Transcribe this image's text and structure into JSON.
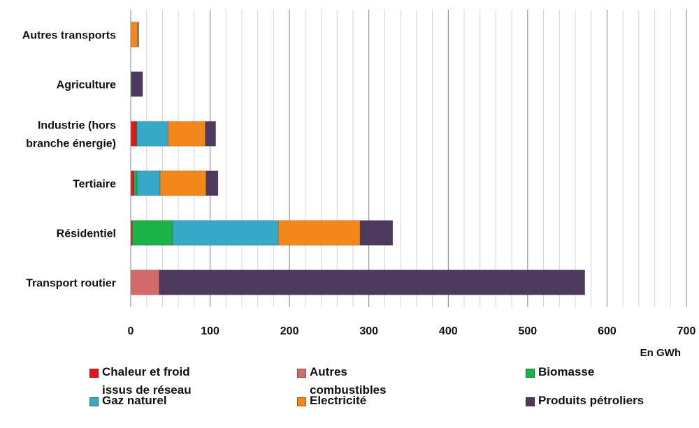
{
  "chart_data": {
    "type": "bar",
    "orientation": "horizontal",
    "stacked": true,
    "categories": [
      "Autres transports",
      "Agriculture",
      "Industrie (hors branche énergie)",
      "Tertiaire",
      "Résidentiel",
      "Transport routier"
    ],
    "category_lines": [
      [
        "Autres transports"
      ],
      [
        "Agriculture"
      ],
      [
        "Industrie (hors",
        "branche énergie)"
      ],
      [
        "Tertiaire"
      ],
      [
        "Résidentiel"
      ],
      [
        "Transport routier"
      ]
    ],
    "series": [
      {
        "name": "Chaleur et froid issus de réseau",
        "legend_lines": [
          "Chaleur et froid",
          "issus de réseau"
        ],
        "color": "#e8141b",
        "values": [
          0,
          0,
          7,
          4,
          2,
          0
        ]
      },
      {
        "name": "Autres combustibles",
        "legend_lines": [
          "Autres",
          "combustibles"
        ],
        "color": "#d46a6a",
        "values": [
          0,
          0,
          0,
          0,
          0,
          36
        ]
      },
      {
        "name": "Biomasse",
        "legend_lines": [
          "Biomasse"
        ],
        "color": "#1bb24a",
        "values": [
          0,
          1,
          1,
          4,
          51,
          0
        ]
      },
      {
        "name": "Gaz naturel",
        "legend_lines": [
          "Gaz naturel"
        ],
        "color": "#36a8c8",
        "values": [
          0,
          0,
          39,
          29,
          133,
          0
        ]
      },
      {
        "name": "Electricité",
        "legend_lines": [
          "Electricité"
        ],
        "color": "#f3871c",
        "values": [
          9,
          0,
          47,
          58,
          103,
          0
        ]
      },
      {
        "name": "Produits pétroliers",
        "legend_lines": [
          "Produits pétroliers"
        ],
        "color": "#4e3a5e",
        "values": [
          1,
          14,
          13,
          15,
          41,
          536
        ]
      }
    ],
    "xlim": [
      0,
      700
    ],
    "x_ticks": [
      "0",
      "100",
      "200",
      "300",
      "400",
      "500",
      "600",
      "700"
    ],
    "unit_label": "En GWh",
    "grid": "vertical major and minor gridlines",
    "legend_position": "bottom"
  }
}
